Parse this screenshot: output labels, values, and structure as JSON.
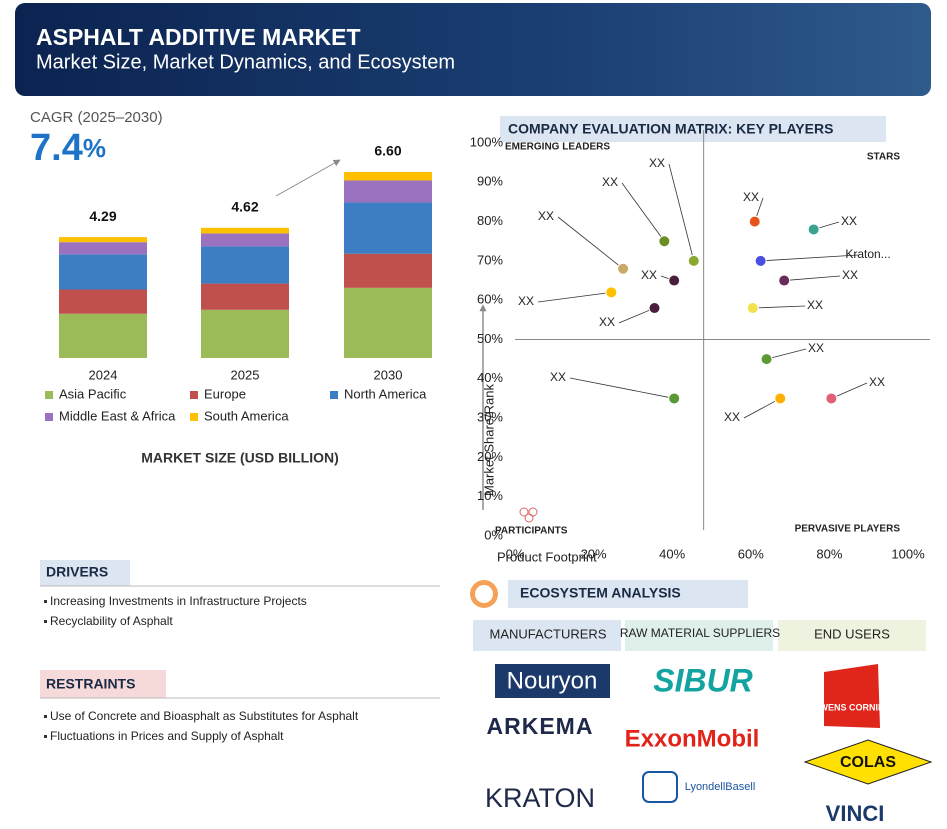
{
  "header": {
    "title": "ASPHALT ADDITIVE MARKET",
    "subtitle": "Market Size, Market Dynamics, and Ecosystem"
  },
  "cagr": {
    "label": "CAGR (2025–2030)",
    "value": 7.4,
    "unit": "%"
  },
  "chart_data": [
    {
      "type": "stacked-bar",
      "title": "MARKET SIZE (USD BILLION)",
      "categories": [
        "2024",
        "2025",
        "2030"
      ],
      "series": [
        {
          "name": "Asia Pacific",
          "color": "#9bbb59",
          "values": [
            1.57,
            1.71,
            2.49
          ]
        },
        {
          "name": "Europe",
          "color": "#c0504d",
          "values": [
            0.86,
            0.93,
            1.21
          ]
        },
        {
          "name": "North America",
          "color": "#3c7dc4",
          "values": [
            1.25,
            1.32,
            1.82
          ]
        },
        {
          "name": "Middle East & Africa",
          "color": "#9b72c0",
          "values": [
            0.43,
            0.46,
            0.78
          ]
        },
        {
          "name": "South America",
          "color": "#ffc000",
          "values": [
            0.18,
            0.2,
            0.3
          ]
        }
      ],
      "totals": {
        "values": [
          4.29,
          4.62,
          6.6
        ],
        "value_labels": [
          "4.29",
          "4.62",
          "6.60"
        ]
      }
    },
    {
      "type": "scatter",
      "title": "COMPANY EVALUATION MATRIX: KEY PLAYERS",
      "x_label": "Product Footprint",
      "y_label": "Market Share/Rank",
      "quadrants": [
        "EMERGING LEADERS",
        "STARS",
        "PARTICIPANTS",
        "PERVASIVE PLAYERS"
      ],
      "x": [
        38,
        45.5,
        27.5,
        40.5,
        24.5,
        35.5,
        61,
        76,
        62.5,
        68.5,
        60.5,
        64,
        40.5,
        67.5,
        80.5
      ],
      "y": [
        75,
        70,
        68,
        65,
        62,
        58,
        80,
        78,
        70,
        65,
        58,
        45,
        35,
        35,
        35
      ],
      "colors": [
        "#6b8e23",
        "#8aa832",
        "#c9a86a",
        "#4a1f3d",
        "#ffc000",
        "#4a1f3d",
        "#e8541a",
        "#3aa38f",
        "#4a4fe0",
        "#6a2a5a",
        "#f2e14a",
        "#5a9a32",
        "#5a9a32",
        "#ffb000",
        "#e0607a"
      ],
      "labels": [
        "XX",
        "XX",
        "XX",
        "XX",
        "XX",
        "XX",
        "XX",
        "XX",
        "Kraton...",
        "XX",
        "XX",
        "XX",
        "XX",
        "XX",
        "XX"
      ],
      "quadrant_x": 48,
      "quadrant_y": 50,
      "xlim": [
        0,
        100
      ],
      "ylim": [
        0,
        100
      ],
      "xticks": [
        {
          "value": 0,
          "label": "0%"
        },
        {
          "value": 20,
          "label": "20%"
        },
        {
          "value": 40,
          "label": "40%"
        },
        {
          "value": 60,
          "label": "60%"
        },
        {
          "value": 80,
          "label": "80%"
        },
        {
          "value": 100,
          "label": "100%"
        }
      ],
      "yticks": [
        {
          "value": 0,
          "label": "0%"
        },
        {
          "value": 10,
          "label": "10%"
        },
        {
          "value": 20,
          "label": "20%"
        },
        {
          "value": 30,
          "label": "30%"
        },
        {
          "value": 40,
          "label": "40%"
        },
        {
          "value": 50,
          "label": "50%"
        },
        {
          "value": 60,
          "label": "60%"
        },
        {
          "value": 70,
          "label": "70%"
        },
        {
          "value": 80,
          "label": "80%"
        },
        {
          "value": 90,
          "label": "90%"
        },
        {
          "value": 100,
          "label": "100%"
        }
      ]
    }
  ],
  "drivers": {
    "title": "DRIVERS",
    "items": [
      "Increasing Investments in Infrastructure Projects",
      "Recyclability of Asphalt"
    ]
  },
  "restraints": {
    "title": "RESTRAINTS",
    "items": [
      "Use of Concrete and Bioasphalt as Substitutes for Asphalt",
      "Fluctuations in Prices and Supply of Asphalt"
    ]
  },
  "ecosystem": {
    "title": "ECOSYSTEM ANALYSIS",
    "columns": [
      {
        "title": "MANUFACTURERS",
        "companies": [
          "Nouryon",
          "ARKEMA",
          "KRATON"
        ]
      },
      {
        "title": "RAW MATERIAL SUPPLIERS",
        "companies": [
          "SIBUR",
          "ExxonMobil",
          "LyondellBasell"
        ]
      },
      {
        "title": "END USERS",
        "companies": [
          "OWENS CORNING",
          "COLAS",
          "VINCI"
        ]
      }
    ]
  }
}
